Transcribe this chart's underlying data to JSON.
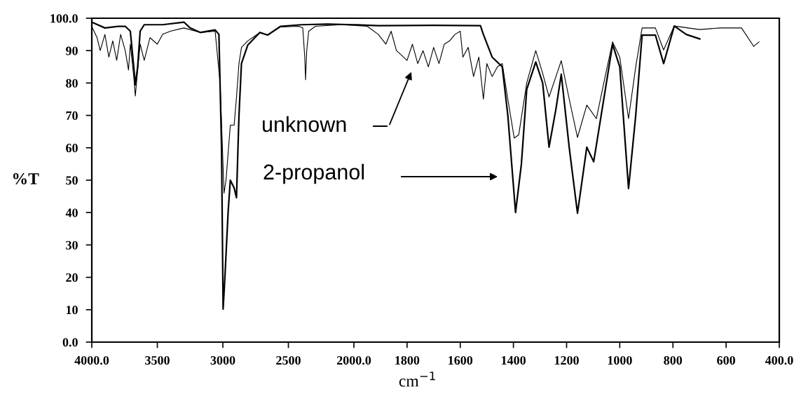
{
  "chart_data": [
    {
      "type": "line",
      "ylabel": "%T",
      "xlim": [
        4000,
        2000
      ],
      "ylim": [
        0,
        100
      ],
      "xticks": [
        {
          "value": 4000,
          "label": "4000.0"
        },
        3500,
        3000,
        2500,
        {
          "value": 2000,
          "label": "2000.0"
        }
      ],
      "yticks": [
        {
          "value": 0,
          "label": "0.0"
        },
        10,
        20,
        30,
        40,
        50,
        60,
        70,
        80,
        90,
        {
          "value": 100,
          "label": "100.0"
        }
      ],
      "grid": false,
      "legend": false,
      "marker": "none",
      "line_style": "solid",
      "series": [
        {
          "color": "#000000",
          "x": [
            3995,
            3960,
            3936,
            3900,
            3870,
            3840,
            3810,
            3780,
            3745,
            3720,
            3706,
            3680,
            3668,
            3650,
            3631,
            3600,
            3556,
            3500,
            3460,
            3400,
            3297,
            3173,
            3059,
            3021,
            2991,
            2976,
            2943,
            2914,
            2896,
            2877,
            2858,
            2810,
            2717,
            2658,
            2561,
            2420,
            2390,
            2375,
            2369,
            2360,
            2345,
            2294,
            2100,
            2000
          ],
          "values": [
            97,
            94,
            90,
            95,
            88,
            93,
            87,
            95,
            90,
            84,
            92,
            82,
            76,
            84,
            92,
            87,
            94,
            92,
            95,
            96,
            97,
            95.6,
            96,
            80,
            46,
            50,
            67,
            67,
            75.5,
            86,
            91,
            93,
            95.6,
            94.8,
            97.3,
            97.5,
            97,
            88,
            81,
            90,
            96,
            97.5,
            98,
            97.8
          ]
        },
        {
          "color": "#000000",
          "x": [
            3995,
            3900,
            3800,
            3745,
            3706,
            3680,
            3668,
            3650,
            3631,
            3600,
            3460,
            3297,
            3250,
            3173,
            3059,
            3030,
            3010,
            2998,
            2985,
            2960,
            2943,
            2914,
            2896,
            2877,
            2858,
            2810,
            2717,
            2658,
            2561,
            2400,
            2200,
            2000
          ],
          "values": [
            98.7,
            97,
            97.5,
            97.5,
            96,
            85,
            79.4,
            85,
            96,
            98,
            98,
            98.8,
            97,
            95.6,
            96.4,
            95,
            60,
            10.2,
            19.5,
            40,
            50,
            47.6,
            44.6,
            70,
            86,
            91.7,
            95.6,
            94.8,
            97.5,
            98,
            98.2,
            98
          ]
        }
      ]
    },
    {
      "type": "line",
      "xlabel": "cm$^{−1}$",
      "xlim": [
        2000,
        400
      ],
      "ylim": [
        0,
        100
      ],
      "xticks": [
        1800,
        1600,
        1400,
        1200,
        1000,
        800,
        600,
        {
          "value": 400,
          "label": "400.0"
        }
      ],
      "tick_labels": "x",
      "grid": false,
      "legend": false,
      "marker": "none",
      "line_style": "solid",
      "annotations": [
        "unknown",
        "2-propanol"
      ],
      "series": [
        {
          "color": "#000000",
          "x": [
            2000,
            1950,
            1908,
            1880,
            1860,
            1840,
            1800,
            1780,
            1760,
            1740,
            1720,
            1700,
            1680,
            1660,
            1640,
            1620,
            1600,
            1590,
            1570,
            1550,
            1530,
            1513,
            1500,
            1480,
            1460,
            1442,
            1421,
            1397,
            1380,
            1350,
            1316,
            1290,
            1266,
            1240,
            1220,
            1190,
            1159,
            1124,
            1088,
            1060,
            1027,
            1000,
            967,
            940,
            916,
            866,
            835,
            795,
            700,
            624,
            542,
            496,
            476
          ],
          "values": [
            97.8,
            97.5,
            95,
            92,
            96,
            90,
            87,
            92,
            86,
            90,
            85,
            91,
            86,
            92,
            93,
            95,
            96,
            88,
            91,
            82,
            88,
            75,
            86,
            82,
            85,
            86,
            75,
            63,
            64,
            80,
            90,
            83,
            75.7,
            82,
            86.9,
            75,
            63.2,
            73.2,
            69,
            80,
            92.7,
            88,
            69,
            85,
            97,
            97,
            90.2,
            97.6,
            96.5,
            97,
            97,
            91.3,
            92.7
          ]
        },
        {
          "color": "#000000",
          "x": [
            2000,
            1908,
            1700,
            1524,
            1513,
            1480,
            1442,
            1421,
            1392,
            1370,
            1350,
            1316,
            1290,
            1266,
            1240,
            1220,
            1190,
            1159,
            1124,
            1098,
            1070,
            1027,
            1000,
            967,
            940,
            916,
            866,
            835,
            795,
            750,
            699
          ],
          "values": [
            98,
            97.7,
            97.8,
            97.7,
            95,
            88,
            85,
            70,
            40,
            55,
            78,
            86.5,
            80,
            60.2,
            72,
            82.7,
            60,
            39.8,
            60.2,
            55.7,
            70,
            91.9,
            85,
            47.4,
            70,
            94.8,
            94.8,
            86,
            97.6,
            95,
            93.6
          ]
        }
      ]
    }
  ]
}
